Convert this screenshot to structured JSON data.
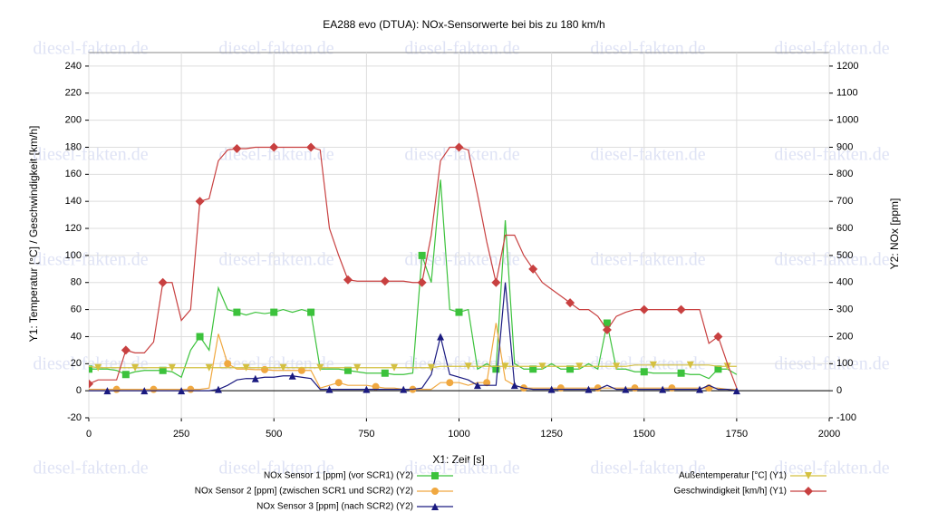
{
  "chart_data": {
    "type": "line",
    "title": "EA288 evo (DTUA): NOx-Sensorwerte bei bis zu 180 km/h",
    "x_label": "X1: Zeit [s]",
    "y_label": "Y1: Temperatur [°C] / Geschwindigkeit [km/h]",
    "y2_label": "Y2: NOx [ppm]",
    "watermark": "diesel-fakten.de",
    "xlim": [
      0,
      2000
    ],
    "xticks": [
      0,
      250,
      500,
      750,
      1000,
      1250,
      1500,
      1750,
      2000
    ],
    "ylim": [
      -20,
      250
    ],
    "yticks": [
      -20,
      0,
      20,
      40,
      60,
      80,
      100,
      120,
      140,
      160,
      180,
      200,
      220,
      240
    ],
    "y2lim": [
      -100,
      1250
    ],
    "y2ticks": [
      -100,
      0,
      100,
      200,
      300,
      400,
      500,
      600,
      700,
      800,
      900,
      1000,
      1100,
      1200
    ],
    "grid": true,
    "x": [
      0,
      25,
      50,
      75,
      100,
      125,
      150,
      175,
      200,
      225,
      250,
      275,
      300,
      325,
      350,
      375,
      400,
      425,
      450,
      475,
      500,
      525,
      550,
      575,
      600,
      625,
      650,
      675,
      700,
      725,
      750,
      775,
      800,
      825,
      850,
      875,
      900,
      925,
      950,
      975,
      1000,
      1025,
      1050,
      1075,
      1100,
      1125,
      1150,
      1175,
      1200,
      1225,
      1250,
      1275,
      1300,
      1325,
      1350,
      1375,
      1400,
      1425,
      1450,
      1475,
      1500,
      1525,
      1550,
      1575,
      1600,
      1625,
      1650,
      1675,
      1700,
      1725,
      1750
    ],
    "series": [
      {
        "name": "NOx Sensor 1 [ppm] (vor SCR1) (Y2)",
        "color": "#3cc23c",
        "axis": "y2",
        "marker": "square",
        "values": [
          80,
          80,
          80,
          75,
          60,
          70,
          75,
          75,
          75,
          70,
          50,
          150,
          200,
          150,
          380,
          300,
          290,
          280,
          290,
          285,
          290,
          300,
          290,
          300,
          290,
          80,
          80,
          80,
          75,
          70,
          65,
          65,
          65,
          60,
          60,
          65,
          500,
          400,
          780,
          300,
          290,
          300,
          80,
          100,
          80,
          630,
          100,
          80,
          80,
          80,
          100,
          80,
          80,
          80,
          100,
          80,
          250,
          80,
          80,
          70,
          70,
          65,
          65,
          65,
          65,
          60,
          60,
          45,
          80,
          80,
          60
        ]
      },
      {
        "name": "NOx Sensor 2 [ppm] (zwischen SCR1 und SCR2) (Y2)",
        "color": "#f0a840",
        "axis": "y2",
        "marker": "circle",
        "values": [
          5,
          5,
          5,
          5,
          5,
          5,
          5,
          5,
          5,
          5,
          5,
          5,
          5,
          10,
          210,
          100,
          80,
          80,
          78,
          78,
          75,
          75,
          75,
          75,
          75,
          10,
          20,
          30,
          20,
          20,
          20,
          15,
          10,
          10,
          5,
          5,
          5,
          5,
          30,
          30,
          30,
          20,
          30,
          30,
          250,
          40,
          20,
          10,
          10,
          10,
          10,
          10,
          10,
          10,
          10,
          10,
          10,
          10,
          10,
          10,
          10,
          10,
          10,
          10,
          10,
          10,
          10,
          10,
          10,
          5,
          5
        ]
      },
      {
        "name": "NOx Sensor 3 [ppm] (nach SCR2) (Y2)",
        "color": "#1a1a80",
        "axis": "y2",
        "marker": "triangle",
        "values": [
          0,
          0,
          0,
          0,
          0,
          0,
          0,
          0,
          0,
          0,
          0,
          0,
          0,
          0,
          5,
          20,
          40,
          45,
          45,
          50,
          50,
          55,
          55,
          50,
          45,
          5,
          5,
          5,
          5,
          5,
          5,
          5,
          5,
          5,
          5,
          5,
          10,
          60,
          200,
          60,
          50,
          40,
          20,
          20,
          20,
          400,
          20,
          10,
          5,
          5,
          5,
          5,
          5,
          5,
          5,
          5,
          20,
          5,
          5,
          5,
          5,
          5,
          5,
          5,
          5,
          5,
          5,
          20,
          5,
          5,
          0
        ]
      },
      {
        "name": "Außentemperatur [°C] (Y1)",
        "color": "#d4c040",
        "axis": "y",
        "marker": "triangle-down",
        "values": [
          18,
          17,
          17,
          17,
          17,
          17,
          17,
          17,
          17,
          17,
          17,
          17,
          17,
          17,
          17,
          17,
          17,
          17,
          17,
          17,
          17,
          17,
          17,
          17,
          17,
          17,
          17,
          17,
          17,
          17,
          17,
          17,
          17,
          17,
          17,
          17,
          17,
          17,
          18,
          18,
          18,
          18,
          18,
          18,
          18,
          18,
          18,
          18,
          18,
          18,
          18,
          18,
          18,
          18,
          18,
          18,
          18,
          18,
          18,
          19,
          19,
          19,
          19,
          19,
          19,
          19,
          19,
          19,
          18,
          18,
          18
        ]
      },
      {
        "name": "Geschwindigkeit [km/h] (Y1)",
        "color": "#c84040",
        "axis": "y",
        "marker": "diamond",
        "values": [
          5,
          8,
          8,
          8,
          30,
          28,
          28,
          36,
          80,
          80,
          52,
          60,
          140,
          142,
          170,
          178,
          179,
          179,
          180,
          180,
          180,
          180,
          180,
          180,
          180,
          178,
          120,
          100,
          82,
          81,
          81,
          81,
          81,
          81,
          81,
          80,
          80,
          115,
          170,
          180,
          180,
          178,
          145,
          110,
          80,
          115,
          115,
          100,
          90,
          80,
          75,
          70,
          65,
          60,
          60,
          55,
          45,
          55,
          58,
          60,
          60,
          60,
          60,
          60,
          60,
          60,
          60,
          35,
          40,
          20,
          2
        ]
      }
    ]
  }
}
